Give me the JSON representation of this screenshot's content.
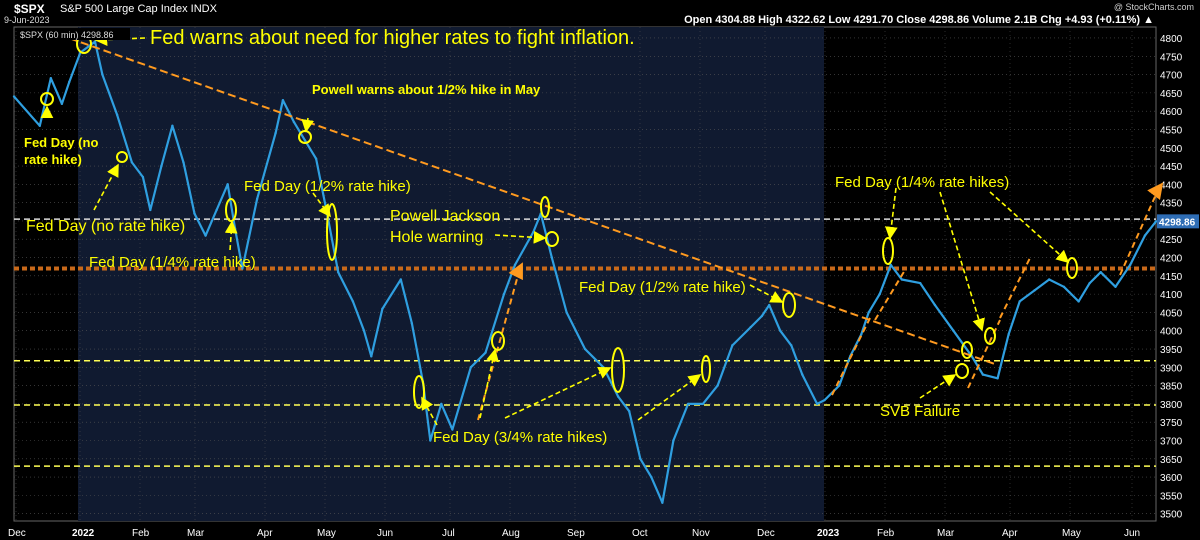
{
  "header": {
    "symbol": "$SPX",
    "name": "S&P 500 Large Cap Index  INDX",
    "date": "9-Jun-2023",
    "ohlc": "Open 4304.88  High 4322.62  Low 4291.70  Close 4298.86  Volume 2.1B  Chg +4.93 (+0.11%) ▲",
    "watermark": "@ StockCharts.com"
  },
  "legend": {
    "label": "$SPX (60 min) 4298.86"
  },
  "colors": {
    "price": "#2f9fe0",
    "annotation": "#ffff00",
    "trend": "#ff9a1f",
    "support": "#ffff55",
    "resistance": "#c8691a",
    "grid": "#555555",
    "panel_dark": "#000000",
    "panel_shade": "#101a30",
    "last_price_box": "#2e6db5"
  },
  "chart_data": {
    "type": "line",
    "title": "$SPX S&P 500 Large Cap Index",
    "series": [
      {
        "name": "$SPX (60 min)",
        "points": [
          [
            0.0,
            4640
          ],
          [
            0.7,
            4560
          ],
          [
            1.0,
            4690
          ],
          [
            1.3,
            4620
          ],
          [
            1.5,
            4680
          ],
          [
            1.8,
            4760
          ],
          [
            2.2,
            4790
          ],
          [
            2.4,
            4700
          ],
          [
            2.8,
            4590
          ],
          [
            3.2,
            4460
          ],
          [
            3.5,
            4420
          ],
          [
            3.7,
            4330
          ],
          [
            4.0,
            4450
          ],
          [
            4.3,
            4560
          ],
          [
            4.6,
            4460
          ],
          [
            4.9,
            4320
          ],
          [
            5.2,
            4260
          ],
          [
            5.5,
            4330
          ],
          [
            5.8,
            4400
          ],
          [
            6.0,
            4280
          ],
          [
            6.2,
            4170
          ],
          [
            6.6,
            4360
          ],
          [
            7.1,
            4540
          ],
          [
            7.3,
            4630
          ],
          [
            7.6,
            4570
          ],
          [
            7.9,
            4520
          ],
          [
            8.2,
            4470
          ],
          [
            8.5,
            4320
          ],
          [
            8.8,
            4160
          ],
          [
            9.2,
            4080
          ],
          [
            9.5,
            4000
          ],
          [
            9.7,
            3930
          ],
          [
            10.0,
            4060
          ],
          [
            10.5,
            4140
          ],
          [
            10.8,
            4020
          ],
          [
            11.1,
            3860
          ],
          [
            11.3,
            3700
          ],
          [
            11.6,
            3800
          ],
          [
            11.9,
            3730
          ],
          [
            12.4,
            3900
          ],
          [
            12.8,
            3940
          ],
          [
            13.3,
            4100
          ],
          [
            13.6,
            4180
          ],
          [
            14.1,
            4270
          ],
          [
            14.3,
            4320
          ],
          [
            14.6,
            4200
          ],
          [
            15.0,
            4050
          ],
          [
            15.5,
            3950
          ],
          [
            16.0,
            3900
          ],
          [
            16.4,
            3820
          ],
          [
            16.7,
            3780
          ],
          [
            17.0,
            3650
          ],
          [
            17.3,
            3600
          ],
          [
            17.6,
            3530
          ],
          [
            17.9,
            3700
          ],
          [
            18.3,
            3800
          ],
          [
            18.7,
            3800
          ],
          [
            19.1,
            3850
          ],
          [
            19.5,
            3960
          ],
          [
            20.0,
            4010
          ],
          [
            20.3,
            4040
          ],
          [
            20.5,
            4070
          ],
          [
            20.8,
            4000
          ],
          [
            21.1,
            3960
          ],
          [
            21.4,
            3880
          ],
          [
            21.8,
            3800
          ],
          [
            22.0,
            3810
          ],
          [
            22.4,
            3850
          ],
          [
            22.7,
            3930
          ],
          [
            23.0,
            3990
          ],
          [
            23.2,
            4050
          ],
          [
            23.5,
            4100
          ],
          [
            23.8,
            4180
          ],
          [
            24.1,
            4140
          ],
          [
            24.6,
            4130
          ],
          [
            25.0,
            4070
          ],
          [
            25.5,
            4000
          ],
          [
            26.0,
            3930
          ],
          [
            26.3,
            3880
          ],
          [
            26.7,
            3870
          ],
          [
            27.0,
            3990
          ],
          [
            27.3,
            4080
          ],
          [
            27.7,
            4110
          ],
          [
            28.1,
            4140
          ],
          [
            28.5,
            4120
          ],
          [
            28.9,
            4080
          ],
          [
            29.2,
            4130
          ],
          [
            29.5,
            4160
          ],
          [
            29.9,
            4120
          ],
          [
            30.3,
            4180
          ],
          [
            30.7,
            4260
          ],
          [
            31.0,
            4298.86
          ]
        ]
      }
    ],
    "y_ticks": [
      3500,
      3550,
      3600,
      3650,
      3700,
      3750,
      3800,
      3850,
      3900,
      3950,
      4000,
      4050,
      4100,
      4150,
      4200,
      4250,
      4300,
      4350,
      4400,
      4450,
      4500,
      4550,
      4600,
      4650,
      4700,
      4750,
      4800
    ],
    "ylim": [
      3480,
      4830
    ],
    "x_ticks": [
      {
        "label": "Dec",
        "bold": false
      },
      {
        "label": "2022",
        "bold": true
      },
      {
        "label": "Feb",
        "bold": false
      },
      {
        "label": "Mar",
        "bold": false
      },
      {
        "label": "Apr",
        "bold": false
      },
      {
        "label": "May",
        "bold": false
      },
      {
        "label": "Jun",
        "bold": false
      },
      {
        "label": "Jul",
        "bold": false
      },
      {
        "label": "Aug",
        "bold": false
      },
      {
        "label": "Sep",
        "bold": false
      },
      {
        "label": "Oct",
        "bold": false
      },
      {
        "label": "Nov",
        "bold": false
      },
      {
        "label": "Dec",
        "bold": false
      },
      {
        "label": "2023",
        "bold": true
      },
      {
        "label": "Feb",
        "bold": false
      },
      {
        "label": "Mar",
        "bold": false
      },
      {
        "label": "Apr",
        "bold": false
      },
      {
        "label": "May",
        "bold": false
      },
      {
        "label": "Jun",
        "bold": false
      }
    ],
    "last_price_label": "4298.86",
    "horizontal_lines": [
      {
        "kind": "resistance",
        "value": 4305
      },
      {
        "kind": "support",
        "value": 3918
      },
      {
        "kind": "support",
        "value": 3797
      },
      {
        "kind": "resistance",
        "value": 4170
      },
      {
        "kind": "support",
        "value": 3630
      }
    ],
    "trendline": [
      [
        1.2,
        4810
      ],
      [
        26.6,
        3910
      ]
    ],
    "annotations": [
      {
        "text": "Fed warns about need for higher rates to fight inflation.",
        "size": "large"
      },
      {
        "text": "Powell warns about 1/2% hike in May",
        "size": "small"
      },
      {
        "text": "Fed Day (no",
        "size": "small"
      },
      {
        "text": "rate hike)",
        "size": "small"
      },
      {
        "text": "Fed Day (1/2% rate hike)",
        "size": "medium"
      },
      {
        "text": "Fed Day (no rate hike)",
        "size": "medium"
      },
      {
        "text": "Fed Day (1/4% rate hike)",
        "size": "medium"
      },
      {
        "text": "Powell Jackson",
        "size": "medium"
      },
      {
        "text": "Hole warning",
        "size": "medium"
      },
      {
        "text": "Fed Day (1/2% rate hike)",
        "size": "medium"
      },
      {
        "text": "Fed Day (3/4% rate hikes)",
        "size": "medium"
      },
      {
        "text": "Fed Day (1/4% rate hikes)",
        "size": "medium"
      },
      {
        "text": "SVB Failure",
        "size": "medium"
      }
    ]
  }
}
